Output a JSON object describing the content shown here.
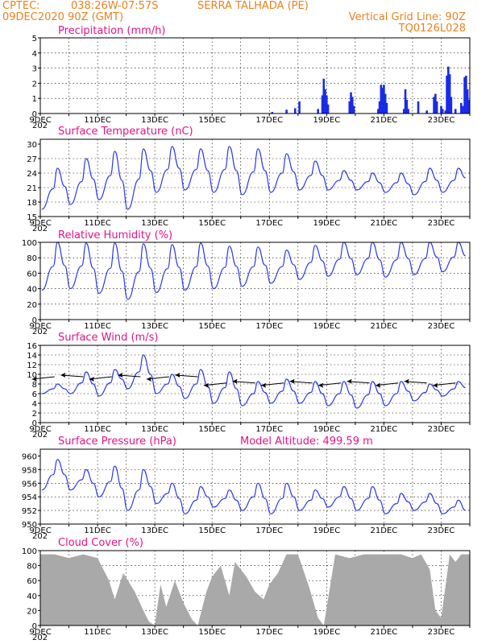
{
  "header": {
    "source": "CPTEC:",
    "coords": "038:26W-07:57S",
    "station": "SERRA TALHADA (PE)",
    "run": "09DEC2020 90Z (GMT)",
    "grid_line": "Vertical Grid Line: 90Z",
    "code": "TQ0126L028"
  },
  "x_ticks": [
    "9DEC",
    "11DEC",
    "13DEC",
    "15DEC",
    "17DEC",
    "19DEC",
    "21DEC",
    "23DEC"
  ],
  "year_stub": "202",
  "chart_data": [
    {
      "type": "bar",
      "title": "Precipitation (mm/h)",
      "ylim": [
        0,
        5
      ],
      "yticks": [
        "0",
        "1",
        "2",
        "3",
        "4",
        "5"
      ],
      "x_domain_days": [
        9,
        24
      ],
      "bars": [
        [
          17.1,
          0.1
        ],
        [
          17.6,
          0.25
        ],
        [
          17.9,
          0.35
        ],
        [
          18.05,
          0.8
        ],
        [
          18.7,
          0.3
        ],
        [
          18.85,
          1.2
        ],
        [
          18.9,
          2.3
        ],
        [
          18.95,
          1.6
        ],
        [
          19.0,
          1.2
        ],
        [
          19.05,
          0.6
        ],
        [
          19.8,
          0.8
        ],
        [
          19.85,
          1.4
        ],
        [
          19.9,
          1.1
        ],
        [
          19.95,
          0.5
        ],
        [
          20.8,
          0.3
        ],
        [
          20.85,
          0.8
        ],
        [
          20.9,
          1.9
        ],
        [
          20.95,
          1.7
        ],
        [
          21.0,
          1.9
        ],
        [
          21.05,
          1.3
        ],
        [
          21.1,
          0.7
        ],
        [
          21.7,
          0.3
        ],
        [
          21.75,
          1.6
        ],
        [
          21.8,
          0.9
        ],
        [
          21.85,
          0.3
        ],
        [
          22.2,
          0.8
        ],
        [
          22.5,
          0.2
        ],
        [
          22.75,
          1.1
        ],
        [
          22.8,
          1.3
        ],
        [
          22.85,
          0.8
        ],
        [
          23.0,
          0.5
        ],
        [
          23.05,
          0.3
        ],
        [
          23.15,
          0.2
        ],
        [
          23.2,
          2.5
        ],
        [
          23.25,
          3.1
        ],
        [
          23.3,
          2.6
        ],
        [
          23.35,
          1.1
        ],
        [
          23.5,
          0.3
        ],
        [
          23.7,
          0.7
        ],
        [
          23.75,
          0.5
        ],
        [
          23.82,
          2.4
        ],
        [
          23.87,
          2.5
        ],
        [
          23.92,
          1.6
        ],
        [
          23.97,
          0.9
        ]
      ]
    },
    {
      "type": "line",
      "title": "Surface Temperature (nC)",
      "ylim": [
        15,
        31
      ],
      "yticks": [
        "15",
        "18",
        "21",
        "24",
        "27",
        "30"
      ],
      "x_domain_days": [
        9,
        24
      ],
      "daily_max": [
        25,
        27,
        28.5,
        29,
        29.5,
        29,
        29.5,
        29,
        28,
        26.5,
        24.5,
        24,
        24,
        25,
        25,
        25
      ],
      "daily_min": [
        16.5,
        17.5,
        18.5,
        16.5,
        20,
        20.5,
        20,
        19.5,
        20,
        20.5,
        20.5,
        20.5,
        20,
        19.5,
        20,
        21
      ]
    },
    {
      "type": "line",
      "title": "Relative Humidity (%)",
      "ylim": [
        0,
        100
      ],
      "yticks": [
        "0",
        "20",
        "40",
        "60",
        "80",
        "100"
      ],
      "x_domain_days": [
        9,
        24
      ],
      "daily_max": [
        100,
        99,
        99,
        98,
        97,
        99,
        95,
        94,
        90,
        96,
        100,
        100,
        100,
        100,
        100,
        96
      ],
      "daily_min": [
        38,
        40,
        34,
        26,
        35,
        38,
        40,
        43,
        47,
        52,
        56,
        58,
        55,
        58,
        62,
        65
      ]
    },
    {
      "type": "line",
      "title": "Surface Wind (m/s)",
      "ylim": [
        0,
        16
      ],
      "yticks": [
        "0",
        "2",
        "4",
        "6",
        "8",
        "10",
        "12",
        "14",
        "16"
      ],
      "x_domain_days": [
        9,
        24
      ],
      "daily_max": [
        8,
        10.5,
        11,
        14,
        10,
        11,
        10.5,
        8.5,
        9,
        8.5,
        8.5,
        8.5,
        8.5,
        8,
        8.5,
        8.5
      ],
      "daily_min": [
        6,
        6,
        5.5,
        7,
        6,
        5,
        4,
        3.5,
        4,
        4,
        3.5,
        3,
        3.5,
        4.5,
        5.5,
        6
      ],
      "arrow_days": [
        9.5,
        10.5,
        11.5,
        12.5,
        13.5,
        14.5,
        15.5,
        16.5,
        17.5,
        18.5,
        19.5,
        20.5,
        21.5,
        22.5,
        23.5
      ]
    },
    {
      "type": "line",
      "title": "Surface Pressure (hPa)",
      "subtitle": "Model Altitude: 499.59 m",
      "ylim": [
        950,
        961
      ],
      "yticks": [
        "950",
        "952",
        "954",
        "956",
        "958",
        "960"
      ],
      "x_domain_days": [
        9,
        24
      ],
      "daily_max": [
        959.5,
        958,
        958.5,
        958,
        956,
        955.5,
        955,
        956,
        956,
        955,
        955.5,
        955.5,
        954.5,
        954.5,
        953.5,
        953.5
      ],
      "daily_min": [
        955,
        955,
        954,
        952,
        953,
        951.5,
        952.5,
        952,
        951.5,
        952,
        952.5,
        952,
        951.5,
        952,
        951.5,
        950.5
      ]
    },
    {
      "type": "area",
      "title": "Cloud Cover (%)",
      "ylim": [
        0,
        100
      ],
      "yticks": [
        "0",
        "20",
        "40",
        "60",
        "80",
        "100"
      ],
      "x_domain_days": [
        9,
        24
      ],
      "profile": [
        [
          9.0,
          95
        ],
        [
          9.5,
          95
        ],
        [
          10.0,
          90
        ],
        [
          10.5,
          95
        ],
        [
          11.0,
          90
        ],
        [
          11.4,
          60
        ],
        [
          11.6,
          35
        ],
        [
          11.9,
          70
        ],
        [
          12.3,
          45
        ],
        [
          12.6,
          20
        ],
        [
          12.8,
          5
        ],
        [
          13.0,
          0
        ],
        [
          13.2,
          55
        ],
        [
          13.4,
          25
        ],
        [
          13.7,
          60
        ],
        [
          14.0,
          30
        ],
        [
          14.3,
          8
        ],
        [
          14.5,
          0
        ],
        [
          14.8,
          45
        ],
        [
          15.0,
          65
        ],
        [
          15.3,
          80
        ],
        [
          15.6,
          40
        ],
        [
          15.8,
          85
        ],
        [
          16.2,
          65
        ],
        [
          16.5,
          45
        ],
        [
          16.8,
          35
        ],
        [
          17.0,
          55
        ],
        [
          17.3,
          70
        ],
        [
          17.6,
          95
        ],
        [
          18.0,
          95
        ],
        [
          18.4,
          50
        ],
        [
          18.7,
          10
        ],
        [
          18.9,
          0
        ],
        [
          19.3,
          95
        ],
        [
          19.8,
          90
        ],
        [
          20.3,
          95
        ],
        [
          20.8,
          95
        ],
        [
          21.2,
          95
        ],
        [
          21.6,
          95
        ],
        [
          22.0,
          90
        ],
        [
          22.3,
          95
        ],
        [
          22.6,
          75
        ],
        [
          22.8,
          20
        ],
        [
          23.0,
          10
        ],
        [
          23.3,
          95
        ],
        [
          23.5,
          85
        ],
        [
          23.7,
          95
        ],
        [
          24.0,
          95
        ]
      ]
    }
  ]
}
